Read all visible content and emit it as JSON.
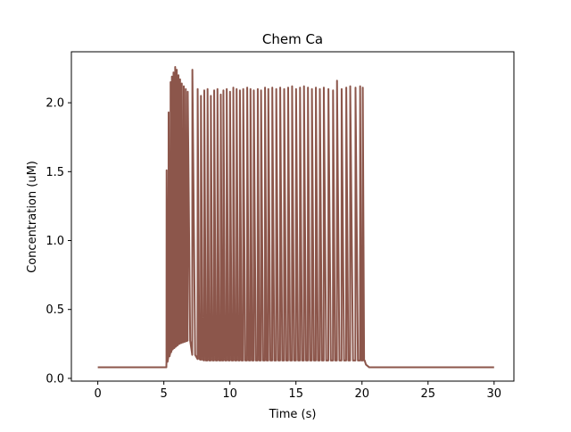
{
  "chart_data": {
    "type": "line",
    "title": "Chem Ca",
    "xlabel": "Time (s)",
    "ylabel": "Concentration (uM)",
    "xlim": [
      -2,
      31.5
    ],
    "ylim": [
      -0.02,
      2.37
    ],
    "xticks": [
      0,
      5,
      10,
      15,
      20,
      25,
      30
    ],
    "yticks": [
      0.0,
      0.5,
      1.0,
      1.5,
      2.0
    ],
    "ytick_labels": [
      "0.0",
      "0.5",
      "1.0",
      "1.5",
      "2.0"
    ],
    "grid": false,
    "series": [
      {
        "color": "#8c564b",
        "baseline": 0.08,
        "stim_start": 5.2,
        "stim_end": 20.1,
        "peak_times": [
          5.2,
          5.35,
          5.5,
          5.6,
          5.72,
          5.85,
          5.97,
          6.1,
          6.22,
          6.35,
          6.5,
          6.65,
          6.8,
          7.15,
          7.55,
          7.8,
          8.05,
          8.3,
          8.55,
          8.8,
          9.05,
          9.3,
          9.5,
          9.75,
          10.0,
          10.25,
          10.5,
          10.75,
          11.0,
          11.3,
          11.55,
          11.8,
          12.1,
          12.35,
          12.65,
          12.9,
          13.2,
          13.5,
          13.8,
          14.1,
          14.4,
          14.7,
          15.0,
          15.3,
          15.6,
          15.9,
          16.2,
          16.5,
          16.8,
          17.1,
          17.45,
          17.8,
          18.1,
          18.45,
          18.8,
          19.1,
          19.5,
          19.85,
          20.05
        ],
        "peak_values": [
          1.51,
          1.93,
          2.15,
          2.19,
          2.22,
          2.26,
          2.24,
          2.2,
          2.17,
          2.14,
          2.12,
          2.1,
          2.08,
          2.24,
          2.1,
          2.05,
          2.09,
          2.1,
          2.05,
          2.09,
          2.1,
          2.06,
          2.09,
          2.1,
          2.08,
          2.11,
          2.1,
          2.09,
          2.1,
          2.11,
          2.1,
          2.09,
          2.1,
          2.09,
          2.11,
          2.1,
          2.11,
          2.1,
          2.11,
          2.1,
          2.11,
          2.12,
          2.1,
          2.11,
          2.12,
          2.11,
          2.1,
          2.11,
          2.1,
          2.11,
          2.1,
          2.09,
          2.16,
          2.1,
          2.11,
          2.12,
          2.11,
          2.12,
          2.11
        ],
        "trough_values": [
          0.12,
          0.16,
          0.19,
          0.21,
          0.22,
          0.23,
          0.24,
          0.25,
          0.255,
          0.26,
          0.265,
          0.27,
          0.275,
          0.17,
          0.14,
          0.135,
          0.13,
          0.13,
          0.13,
          0.13,
          0.13,
          0.13,
          0.13,
          0.13,
          0.13,
          0.13,
          0.13,
          0.13,
          0.13,
          0.13,
          0.13,
          0.13,
          0.13,
          0.13,
          0.13,
          0.13,
          0.13,
          0.13,
          0.13,
          0.13,
          0.13,
          0.13,
          0.13,
          0.13,
          0.13,
          0.13,
          0.13,
          0.13,
          0.13,
          0.13,
          0.13,
          0.13,
          0.13,
          0.13,
          0.13,
          0.13,
          0.13,
          0.13,
          0.13
        ]
      }
    ]
  }
}
